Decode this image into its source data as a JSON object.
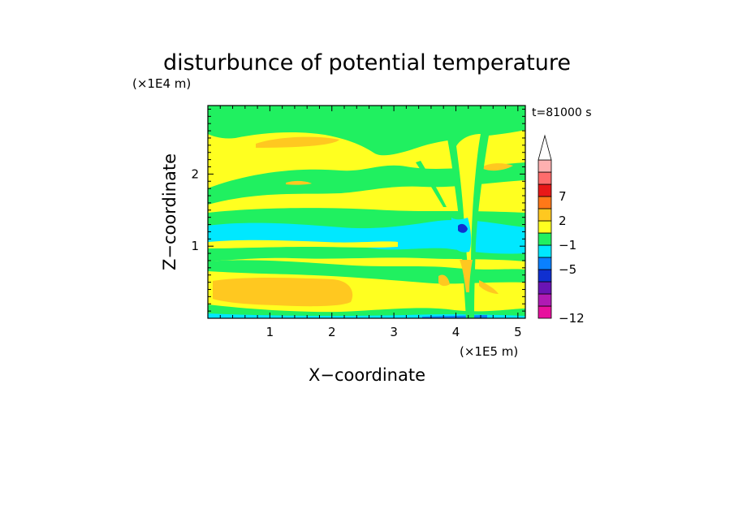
{
  "chart_data": {
    "type": "heatmap",
    "title": "disturbunce of potential temperature",
    "xlabel": "X−coordinate",
    "ylabel": "Z−coordinate",
    "x_unit": "(×1E5 m)",
    "y_unit": "(×1E4 m)",
    "time_label": "t=81000 s",
    "xlim": [
      0,
      5.12
    ],
    "ylim": [
      0,
      2.95
    ],
    "x_ticks": [
      "1",
      "2",
      "3",
      "4",
      "5"
    ],
    "y_ticks": [
      "1",
      "2"
    ],
    "colorbar": {
      "labels": [
        "7",
        "2",
        "−1",
        "−5",
        "−12"
      ],
      "colors": [
        "#e8109e",
        "#b01ab4",
        "#6a14b4",
        "#1030d0",
        "#0a80ff",
        "#00e8ff",
        "#20f060",
        "#ffff20",
        "#ffc820",
        "#ff7818",
        "#e81818",
        "#ff6c6c",
        "#ffb0b0"
      ]
    },
    "field_colors": {
      "yellow": "#ffff20",
      "green": "#20f060",
      "cyan": "#00e8ff",
      "orange": "#ffc820",
      "blue": "#0a80ff",
      "darkblue": "#1030d0"
    }
  }
}
